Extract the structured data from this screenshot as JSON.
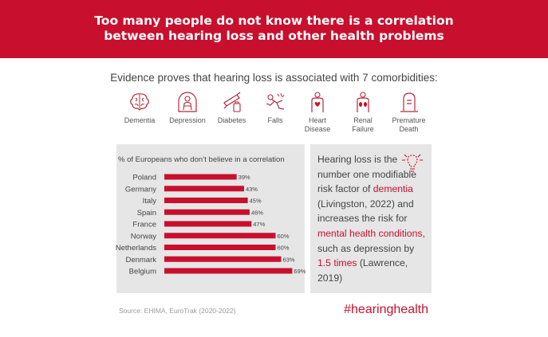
{
  "banner": {
    "line1": "Too many people do not know there is a correlation",
    "line2": "between hearing loss and other health problems"
  },
  "subtitle": "Evidence proves that hearing loss is associated with 7 comorbidities:",
  "comorbidities": [
    {
      "lines": [
        "Dementia"
      ],
      "icon": "brain-icon"
    },
    {
      "lines": [
        "Depression"
      ],
      "icon": "depressed-person-icon"
    },
    {
      "lines": [
        "Diabetes"
      ],
      "icon": "insulin-pen-icon"
    },
    {
      "lines": [
        "Falls"
      ],
      "icon": "falling-person-icon"
    },
    {
      "lines": [
        "Heart",
        "Disease"
      ],
      "icon": "heart-person-icon"
    },
    {
      "lines": [
        "Renal",
        "Failure"
      ],
      "icon": "kidney-person-icon"
    },
    {
      "lines": [
        "Premature",
        "Death"
      ],
      "icon": "tombstone-icon"
    }
  ],
  "fact": {
    "p1": "Hearing loss is the number one modifiable risk factor of",
    "dementia": "dementia",
    "p2": " (Livingston, 2022) and increases the risk for ",
    "mental_health": "mental health conditions",
    "p3": ", such as depression by ",
    "times": "1.5 times",
    "p4": " (Lawrence, 2019)"
  },
  "source": "Source: EHIMA, EuroTrak (2020-2022)",
  "hashtag": "#hearinghealth",
  "colors": {
    "accent": "#c8102e",
    "panel": "#e6e6e6",
    "text": "#444444"
  },
  "chart_data": {
    "type": "bar",
    "orientation": "horizontal",
    "title": "% of Europeans who don’t believe in a correlation",
    "categories": [
      "Poland",
      "Germany",
      "Italy",
      "Spain",
      "France",
      "Norway",
      "Netherlands",
      "Denmark",
      "Belgium"
    ],
    "values": [
      39,
      43,
      45,
      46,
      47,
      60,
      60,
      63,
      69
    ],
    "data_labels": [
      "39%",
      "43%",
      "45%",
      "46%",
      "47%",
      "60%",
      "60%",
      "63%",
      "69%"
    ],
    "xlim": [
      0,
      80
    ],
    "grid": false,
    "bar_color": "#c8102e"
  }
}
